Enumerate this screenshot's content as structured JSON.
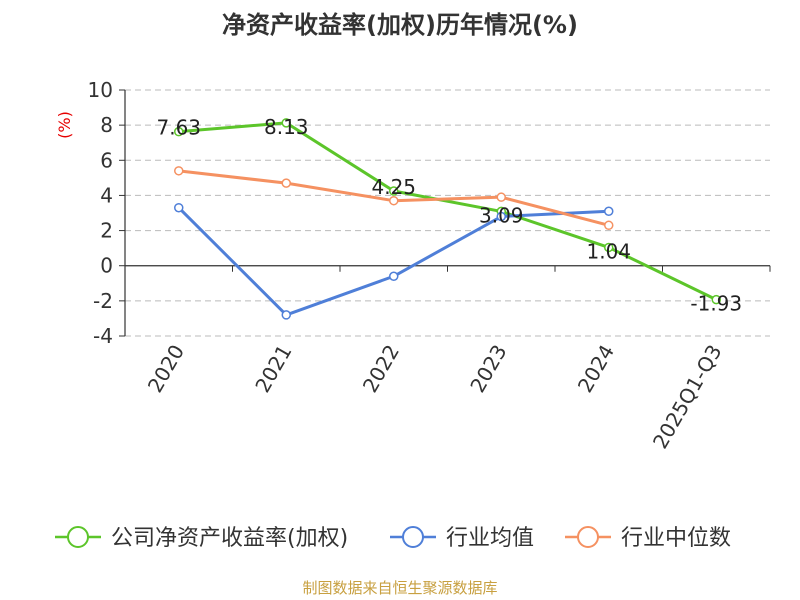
{
  "chart_data": {
    "type": "line",
    "title": "净资产收益率(加权)历年情况(%)",
    "ylabel": "(%)",
    "categories": [
      "2020",
      "2021",
      "2022",
      "2023",
      "2024",
      "2025Q1-Q3"
    ],
    "ylim": [
      -4,
      10
    ],
    "yticks": [
      10,
      8,
      6,
      4,
      2,
      0,
      -2,
      -4
    ],
    "grid": true,
    "legend_position": "bottom",
    "series": [
      {
        "name": "公司净资产收益率(加权)",
        "color": "#5cc52a",
        "values": [
          7.63,
          8.13,
          4.25,
          3.09,
          1.04,
          -1.93
        ],
        "labels": [
          "7.63",
          "8.13",
          "4.25",
          "3.09",
          "1.04",
          "-1.93"
        ]
      },
      {
        "name": "行业均值",
        "color": "#4f7fd8",
        "values": [
          3.3,
          -2.8,
          -0.6,
          2.8,
          3.1,
          null
        ]
      },
      {
        "name": "行业中位数",
        "color": "#f59161",
        "values": [
          5.4,
          4.7,
          3.7,
          3.9,
          2.3,
          null
        ]
      }
    ]
  },
  "source": "制图数据来自恒生聚源数据库"
}
